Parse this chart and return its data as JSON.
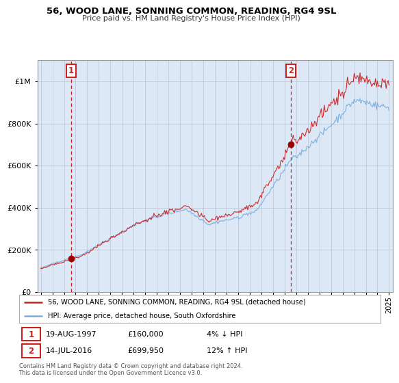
{
  "title": "56, WOOD LANE, SONNING COMMON, READING, RG4 9SL",
  "subtitle": "Price paid vs. HM Land Registry's House Price Index (HPI)",
  "legend_line1": "56, WOOD LANE, SONNING COMMON, READING, RG4 9SL (detached house)",
  "legend_line2": "HPI: Average price, detached house, South Oxfordshire",
  "transaction1_date": "19-AUG-1997",
  "transaction1_price": "£160,000",
  "transaction1_hpi": "4% ↓ HPI",
  "transaction2_date": "14-JUL-2016",
  "transaction2_price": "£699,950",
  "transaction2_hpi": "12% ↑ HPI",
  "footnote": "Contains HM Land Registry data © Crown copyright and database right 2024.\nThis data is licensed under the Open Government Licence v3.0.",
  "sale1_year": 1997.63,
  "sale1_value": 160000,
  "sale2_year": 2016.54,
  "sale2_value": 699950,
  "hpi_color": "#7aaddc",
  "price_color": "#cc2222",
  "dashed_color": "#cc2222",
  "marker_color": "#990000",
  "plot_bg_color": "#dce8f5",
  "fig_bg_color": "#ffffff",
  "ylim_max": 1100000,
  "xlim_start": 1994.7,
  "xlim_end": 2025.3
}
